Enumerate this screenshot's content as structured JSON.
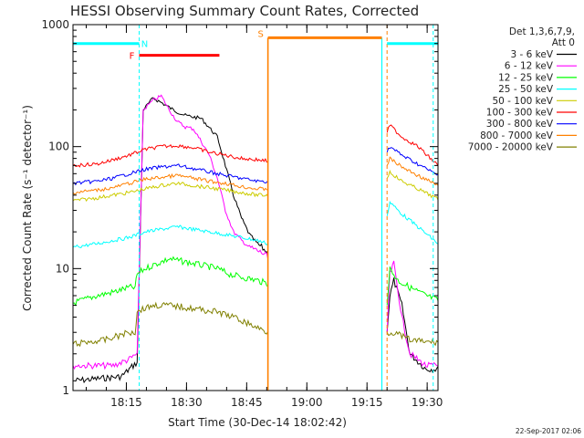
{
  "chart_data": {
    "type": "line",
    "title": "HESSI Observing Summary Count Rates, Corrected",
    "xlabel": "Start Time (30-Dec-14 18:02:42)",
    "ylabel": "Corrected Count Rate (s⁻¹ detector⁻¹)",
    "y_scale": "log",
    "ylim": [
      1,
      1000
    ],
    "x_start": "18:02:42",
    "xlim_minutes": [
      0,
      91
    ],
    "x_ticks": [
      {
        "minute": 13.3,
        "label": "18:15"
      },
      {
        "minute": 28.3,
        "label": "18:30"
      },
      {
        "minute": 43.3,
        "label": "18:45"
      },
      {
        "minute": 58.3,
        "label": "19:00"
      },
      {
        "minute": 73.3,
        "label": "19:15"
      },
      {
        "minute": 88.3,
        "label": "19:30"
      }
    ],
    "y_ticks": [
      {
        "value": 1,
        "label": "1"
      },
      {
        "value": 10,
        "label": "10"
      },
      {
        "value": 100,
        "label": "100"
      },
      {
        "value": 1000,
        "label": "1000"
      }
    ],
    "legend_header": [
      "Det 1,3,6,7,9,",
      "Att 0"
    ],
    "legend_position": "right",
    "date_stamp": "22-Sep-2017 02:06",
    "gap_minutes": [
      48.7,
      75.2
    ],
    "series": [
      {
        "name": "3 - 6 keV",
        "color": "#000000",
        "points": [
          [
            0,
            1.2
          ],
          [
            12,
            1.3
          ],
          [
            15,
            1.6
          ],
          [
            16,
            1.7
          ],
          [
            17.5,
            200
          ],
          [
            20,
            250
          ],
          [
            22,
            230
          ],
          [
            25,
            200
          ],
          [
            28,
            180
          ],
          [
            32,
            170
          ],
          [
            36,
            120
          ],
          [
            38,
            70
          ],
          [
            40,
            40
          ],
          [
            42,
            26
          ],
          [
            44,
            19
          ],
          [
            46,
            16
          ],
          [
            48,
            14
          ],
          [
            48.6,
            13
          ],
          [
            78.3,
            3
          ],
          [
            79,
            6
          ],
          [
            80,
            8
          ],
          [
            82,
            5
          ],
          [
            84,
            2
          ],
          [
            88,
            1.5
          ],
          [
            91,
            1.5
          ]
        ]
      },
      {
        "name": "6 - 12 keV",
        "color": "#ff00ff",
        "points": [
          [
            0,
            1.6
          ],
          [
            10,
            1.6
          ],
          [
            14,
            1.8
          ],
          [
            16,
            2
          ],
          [
            17.5,
            200
          ],
          [
            20,
            240
          ],
          [
            22,
            260
          ],
          [
            24,
            200
          ],
          [
            26,
            160
          ],
          [
            28,
            145
          ],
          [
            30,
            140
          ],
          [
            32,
            110
          ],
          [
            34,
            85
          ],
          [
            36,
            55
          ],
          [
            38,
            30
          ],
          [
            40,
            20
          ],
          [
            42,
            17
          ],
          [
            44,
            15
          ],
          [
            46,
            14
          ],
          [
            48,
            13
          ],
          [
            48.6,
            12
          ],
          [
            78.3,
            3
          ],
          [
            79,
            9
          ],
          [
            80,
            11
          ],
          [
            82,
            4
          ],
          [
            84,
            2
          ],
          [
            88,
            1.6
          ],
          [
            91,
            1.6
          ]
        ]
      },
      {
        "name": "12 - 25 keV",
        "color": "#00ff00",
        "points": [
          [
            0,
            5.2
          ],
          [
            6,
            6
          ],
          [
            10,
            6.4
          ],
          [
            14,
            7
          ],
          [
            15.5,
            7
          ],
          [
            16,
            9
          ],
          [
            18,
            10
          ],
          [
            21,
            11
          ],
          [
            24,
            12
          ],
          [
            27,
            11.5
          ],
          [
            30,
            11
          ],
          [
            33,
            10.5
          ],
          [
            36,
            10
          ],
          [
            39,
            9
          ],
          [
            42,
            8.5
          ],
          [
            46,
            8
          ],
          [
            48.6,
            7.5
          ],
          [
            78.3,
            5
          ],
          [
            79,
            10
          ],
          [
            81,
            8
          ],
          [
            84,
            7
          ],
          [
            88,
            6
          ],
          [
            91,
            5.5
          ]
        ]
      },
      {
        "name": "25 - 50 keV",
        "color": "#00ffff",
        "points": [
          [
            0,
            15
          ],
          [
            6,
            16
          ],
          [
            10,
            17
          ],
          [
            14,
            18
          ],
          [
            18,
            20
          ],
          [
            22,
            21
          ],
          [
            26,
            22
          ],
          [
            30,
            21
          ],
          [
            34,
            20
          ],
          [
            38,
            19
          ],
          [
            42,
            18
          ],
          [
            46,
            17
          ],
          [
            48.6,
            16
          ],
          [
            78.3,
            27
          ],
          [
            79,
            35
          ],
          [
            82,
            28
          ],
          [
            86,
            22
          ],
          [
            91,
            16
          ]
        ]
      },
      {
        "name": "50 - 100 keV",
        "color": "#cccc00",
        "points": [
          [
            0,
            36
          ],
          [
            6,
            38
          ],
          [
            10,
            40
          ],
          [
            14,
            42
          ],
          [
            18,
            45
          ],
          [
            22,
            48
          ],
          [
            26,
            50
          ],
          [
            30,
            48
          ],
          [
            34,
            46
          ],
          [
            38,
            44
          ],
          [
            42,
            42
          ],
          [
            46,
            40
          ],
          [
            48.6,
            40
          ],
          [
            78.3,
            55
          ],
          [
            79,
            62
          ],
          [
            82,
            52
          ],
          [
            86,
            45
          ],
          [
            91,
            37
          ]
        ]
      },
      {
        "name": "100 - 300 keV",
        "color": "#ff0000",
        "points": [
          [
            0,
            70
          ],
          [
            6,
            72
          ],
          [
            10,
            78
          ],
          [
            14,
            85
          ],
          [
            18,
            95
          ],
          [
            22,
            100
          ],
          [
            26,
            102
          ],
          [
            30,
            98
          ],
          [
            34,
            90
          ],
          [
            38,
            85
          ],
          [
            42,
            80
          ],
          [
            46,
            78
          ],
          [
            48.6,
            76
          ],
          [
            78.3,
            130
          ],
          [
            79,
            150
          ],
          [
            82,
            120
          ],
          [
            86,
            100
          ],
          [
            91,
            70
          ]
        ]
      },
      {
        "name": "300 - 800 keV",
        "color": "#0000ff",
        "points": [
          [
            0,
            50
          ],
          [
            6,
            52
          ],
          [
            10,
            55
          ],
          [
            14,
            60
          ],
          [
            18,
            65
          ],
          [
            22,
            68
          ],
          [
            26,
            70
          ],
          [
            30,
            66
          ],
          [
            34,
            62
          ],
          [
            38,
            58
          ],
          [
            42,
            55
          ],
          [
            46,
            52
          ],
          [
            48.6,
            52
          ],
          [
            78.3,
            90
          ],
          [
            79,
            100
          ],
          [
            82,
            85
          ],
          [
            86,
            72
          ],
          [
            91,
            58
          ]
        ]
      },
      {
        "name": "800 - 7000 keV",
        "color": "#ff8000",
        "points": [
          [
            0,
            42
          ],
          [
            6,
            44
          ],
          [
            10,
            46
          ],
          [
            14,
            50
          ],
          [
            18,
            54
          ],
          [
            22,
            56
          ],
          [
            26,
            58
          ],
          [
            30,
            55
          ],
          [
            34,
            52
          ],
          [
            38,
            50
          ],
          [
            42,
            47
          ],
          [
            46,
            45
          ],
          [
            48.6,
            45
          ],
          [
            78.3,
            70
          ],
          [
            79,
            80
          ],
          [
            82,
            68
          ],
          [
            86,
            58
          ],
          [
            91,
            48
          ]
        ]
      },
      {
        "name": "7000 - 20000 keV",
        "color": "#808000",
        "points": [
          [
            0,
            2.4
          ],
          [
            8,
            2.6
          ],
          [
            14,
            3
          ],
          [
            15.5,
            3
          ],
          [
            16,
            4.5
          ],
          [
            20,
            5
          ],
          [
            24,
            5
          ],
          [
            28,
            4.8
          ],
          [
            32,
            4.6
          ],
          [
            36,
            4.4
          ],
          [
            40,
            4
          ],
          [
            44,
            3.5
          ],
          [
            48.6,
            3
          ],
          [
            78.3,
            3
          ],
          [
            80,
            3
          ],
          [
            84,
            2.6
          ],
          [
            88,
            2.5
          ],
          [
            91,
            2.5
          ]
        ]
      }
    ],
    "flag_bars": [
      {
        "label": "",
        "color": "#00ffff",
        "start": 0,
        "end": 16.5,
        "value": 700
      },
      {
        "label": "N",
        "color": "#00ffff",
        "start": 16.5,
        "end": 16.5,
        "value": 700
      },
      {
        "label": "F",
        "color": "#ff0000",
        "start": 16.5,
        "end": 36.5,
        "value": 560
      },
      {
        "label": "S",
        "color": "#ff8000",
        "start": 48.6,
        "end": 77,
        "value": 780
      },
      {
        "label": "",
        "color": "#00ffff",
        "start": 78.3,
        "end": 91,
        "value": 700
      }
    ]
  }
}
